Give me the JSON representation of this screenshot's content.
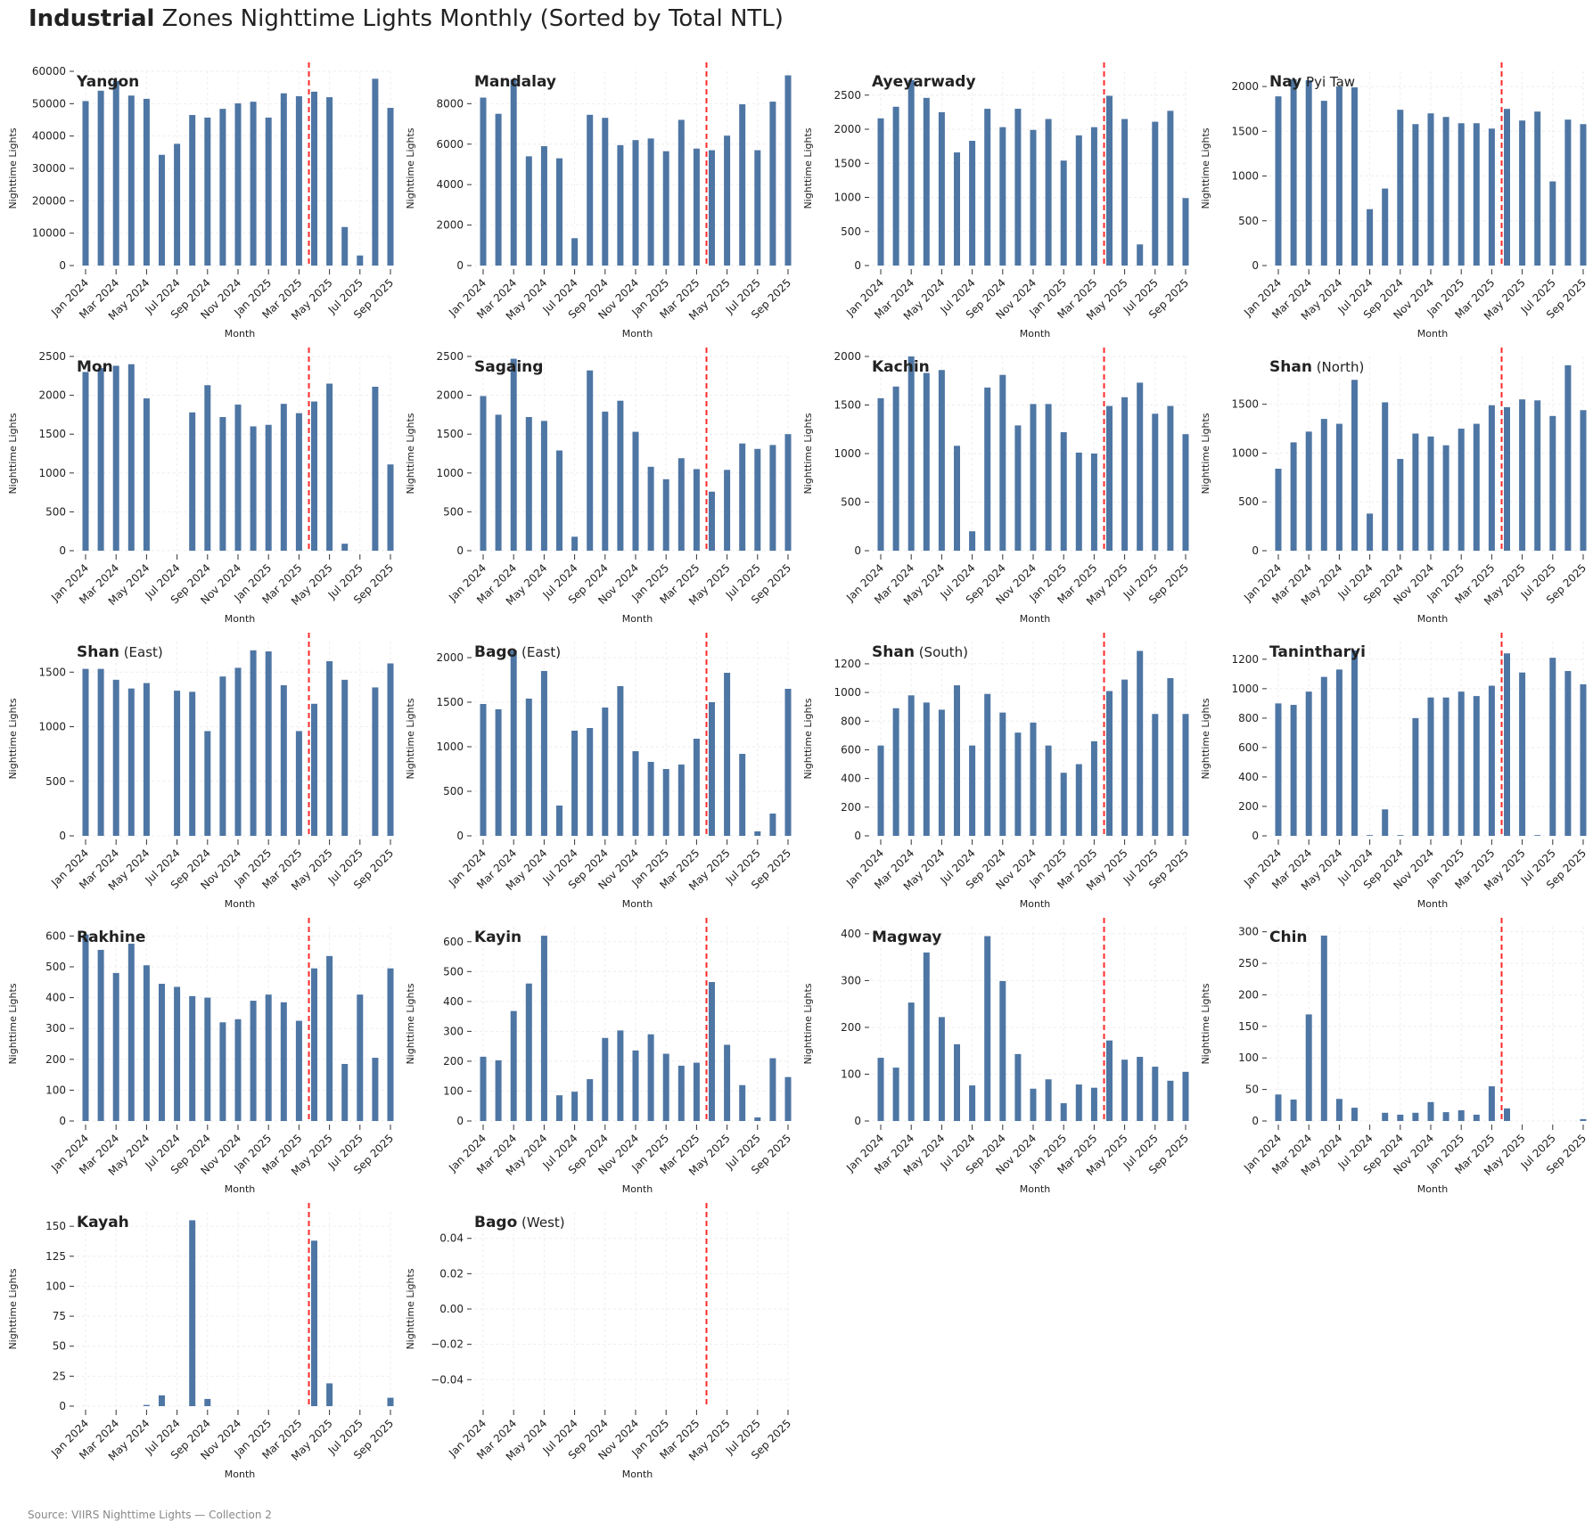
{
  "title": {
    "bold": "Industrial",
    "rest": " Zones Nighttime Lights Monthly (Sorted by Total NTL)"
  },
  "source": "Source: VIIRS Nighttime Lights — Collection 2",
  "colors": {
    "bar": "#4e76a4",
    "marker_line": "#ff2a2a",
    "grid": "#eeeeee"
  },
  "axis": {
    "ylabel": "Nighttime Lights",
    "xlabel": "Month"
  },
  "chart_data": [
    {
      "type": "bar",
      "title": "Yangon",
      "suffix": "",
      "ylim": [
        0,
        60000
      ],
      "yticks": [
        0,
        10000,
        20000,
        30000,
        40000,
        50000,
        60000
      ],
      "values": [
        50800,
        54000,
        57000,
        52500,
        51500,
        34200,
        37600,
        46500,
        45700,
        48400,
        50100,
        50600,
        45700,
        53200,
        52300,
        53700,
        52000,
        11900,
        3100,
        57700,
        48700
      ]
    },
    {
      "type": "bar",
      "title": "Mandalay",
      "suffix": "",
      "ylim": [
        0,
        9600
      ],
      "yticks": [
        0,
        2000,
        4000,
        6000,
        8000
      ],
      "values": [
        8300,
        7500,
        9200,
        5400,
        5900,
        5300,
        1350,
        7450,
        7300,
        5950,
        6200,
        6280,
        5650,
        7200,
        5780,
        5700,
        6420,
        7970,
        5700,
        8100,
        9400
      ]
    },
    {
      "type": "bar",
      "title": "Ayeyarwady",
      "suffix": "",
      "ylim": [
        0,
        2850
      ],
      "yticks": [
        0,
        500,
        1000,
        1500,
        2000,
        2500
      ],
      "values": [
        2160,
        2330,
        2720,
        2460,
        2250,
        1660,
        1830,
        2300,
        2030,
        2300,
        1990,
        2150,
        1540,
        1910,
        2030,
        2490,
        2150,
        310,
        2110,
        2270,
        990
      ]
    },
    {
      "type": "bar",
      "title": "Nay",
      "suffix": "Pyi Taw",
      "ylim": [
        0,
        2170
      ],
      "yticks": [
        0,
        500,
        1000,
        1500,
        2000
      ],
      "values": [
        1890,
        2080,
        2070,
        1840,
        2000,
        1990,
        630,
        860,
        1740,
        1580,
        1700,
        1660,
        1590,
        1590,
        1530,
        1750,
        1620,
        1720,
        940,
        1630,
        1580
      ]
    },
    {
      "type": "bar",
      "title": "Mon",
      "suffix": "",
      "ylim": [
        0,
        2500
      ],
      "yticks": [
        0,
        500,
        1000,
        1500,
        2000,
        2500
      ],
      "values": [
        2300,
        2350,
        2380,
        2400,
        1960,
        0,
        0,
        1780,
        2130,
        1720,
        1880,
        1600,
        1620,
        1890,
        1770,
        1920,
        2150,
        90,
        0,
        2110,
        1110
      ]
    },
    {
      "type": "bar",
      "title": "Sagaing",
      "suffix": "",
      "ylim": [
        0,
        2500
      ],
      "yticks": [
        0,
        500,
        1000,
        1500,
        2000,
        2500
      ],
      "values": [
        1990,
        1750,
        2470,
        1720,
        1670,
        1290,
        180,
        2320,
        1790,
        1930,
        1530,
        1080,
        920,
        1190,
        1050,
        760,
        1040,
        1380,
        1310,
        1360,
        1500
      ]
    },
    {
      "type": "bar",
      "title": "Kachin",
      "suffix": "",
      "ylim": [
        0,
        2000
      ],
      "yticks": [
        0,
        500,
        1000,
        1500,
        2000
      ],
      "values": [
        1570,
        1690,
        2000,
        1830,
        1860,
        1080,
        200,
        1680,
        1810,
        1290,
        1510,
        1510,
        1220,
        1010,
        1000,
        1490,
        1580,
        1730,
        1410,
        1490,
        1200
      ]
    },
    {
      "type": "bar",
      "title": "Shan",
      "suffix": "(North)",
      "ylim": [
        0,
        1990
      ],
      "yticks": [
        0,
        500,
        1000,
        1500
      ],
      "values": [
        840,
        1110,
        1220,
        1350,
        1300,
        1750,
        380,
        1520,
        940,
        1200,
        1170,
        1080,
        1250,
        1300,
        1490,
        1470,
        1550,
        1540,
        1380,
        1900,
        1440
      ]
    },
    {
      "type": "bar",
      "title": "Shan",
      "suffix": "(East)",
      "ylim": [
        0,
        1780
      ],
      "yticks": [
        0,
        500,
        1000,
        1500
      ],
      "values": [
        1530,
        1530,
        1430,
        1350,
        1400,
        0,
        1330,
        1320,
        960,
        1460,
        1540,
        1700,
        1690,
        1380,
        960,
        1210,
        1600,
        1430,
        0,
        1360,
        1580
      ]
    },
    {
      "type": "bar",
      "title": "Bago",
      "suffix": "(East)",
      "ylim": [
        0,
        2180
      ],
      "yticks": [
        0,
        500,
        1000,
        1500,
        2000
      ],
      "values": [
        1480,
        1420,
        2080,
        1540,
        1850,
        340,
        1180,
        1210,
        1440,
        1680,
        950,
        830,
        750,
        800,
        1090,
        1500,
        1830,
        920,
        50,
        250,
        1650
      ]
    },
    {
      "type": "bar",
      "title": "Shan",
      "suffix": "(South)",
      "ylim": [
        0,
        1355
      ],
      "yticks": [
        0,
        200,
        400,
        600,
        800,
        1000,
        1200
      ],
      "values": [
        630,
        890,
        980,
        930,
        880,
        1050,
        630,
        990,
        860,
        720,
        790,
        630,
        440,
        500,
        660,
        1010,
        1090,
        1290,
        850,
        1100,
        850
      ]
    },
    {
      "type": "bar",
      "title": "Tanintharyi",
      "suffix": "",
      "ylim": [
        0,
        1320
      ],
      "yticks": [
        0,
        200,
        400,
        600,
        800,
        1000,
        1200
      ],
      "values": [
        900,
        890,
        980,
        1080,
        1130,
        1260,
        5,
        180,
        5,
        800,
        940,
        940,
        980,
        950,
        1020,
        1240,
        1110,
        5,
        1210,
        1120,
        1030
      ]
    },
    {
      "type": "bar",
      "title": "Rakhine",
      "suffix": "",
      "ylim": [
        0,
        630
      ],
      "yticks": [
        0,
        100,
        200,
        300,
        400,
        500,
        600
      ],
      "values": [
        605,
        555,
        480,
        575,
        505,
        445,
        435,
        405,
        400,
        320,
        330,
        390,
        410,
        385,
        325,
        495,
        535,
        185,
        410,
        205,
        495
      ]
    },
    {
      "type": "bar",
      "title": "Kayin",
      "suffix": "",
      "ylim": [
        0,
        650
      ],
      "yticks": [
        0,
        100,
        200,
        300,
        400,
        500,
        600
      ],
      "values": [
        215,
        203,
        368,
        460,
        620,
        86,
        98,
        140,
        278,
        303,
        236,
        290,
        225,
        185,
        195,
        465,
        255,
        120,
        12,
        210,
        147
      ]
    },
    {
      "type": "bar",
      "title": "Magway",
      "suffix": "",
      "ylim": [
        0,
        415
      ],
      "yticks": [
        0,
        100,
        200,
        300,
        400
      ],
      "values": [
        135,
        114,
        253,
        360,
        222,
        164,
        76,
        395,
        299,
        143,
        69,
        89,
        38,
        78,
        71,
        172,
        131,
        137,
        116,
        86,
        105
      ]
    },
    {
      "type": "bar",
      "title": "Chin",
      "suffix": "",
      "ylim": [
        0,
        308
      ],
      "yticks": [
        0,
        50,
        100,
        150,
        200,
        250,
        300
      ],
      "values": [
        42,
        34,
        169,
        294,
        35,
        21,
        0,
        13,
        10,
        13,
        30,
        14,
        17,
        10,
        55,
        20,
        0,
        0,
        0,
        0,
        3
      ]
    },
    {
      "type": "bar",
      "title": "Kayah",
      "suffix": "",
      "ylim": [
        0,
        162
      ],
      "yticks": [
        0,
        25,
        50,
        75,
        100,
        125,
        150
      ],
      "values": [
        0,
        0,
        0,
        0,
        1,
        9,
        0,
        155,
        6,
        0,
        0,
        0,
        0,
        0,
        0,
        138,
        19,
        0,
        0,
        0,
        7
      ]
    },
    {
      "type": "bar",
      "title": "Bago",
      "suffix": "(West)",
      "ylim": [
        -0.055,
        0.055
      ],
      "yticks": [
        -0.04,
        -0.02,
        0.0,
        0.02,
        0.04
      ],
      "ytick_labels": [
        "−0.04",
        "−0.02",
        "0.00",
        "0.02",
        "0.04"
      ],
      "values": []
    }
  ],
  "months": [
    "Jan 2024",
    "Feb 2024",
    "Mar 2024",
    "Apr 2024",
    "May 2024",
    "Jun 2024",
    "Jul 2024",
    "Aug 2024",
    "Sep 2024",
    "Oct 2024",
    "Nov 2024",
    "Dec 2024",
    "Jan 2025",
    "Feb 2025",
    "Mar 2025",
    "Apr 2025",
    "May 2025",
    "Jun 2025",
    "Jul 2025",
    "Aug 2025",
    "Sep 2025"
  ],
  "xtick_labels": [
    "Jan 2024",
    "Mar 2024",
    "May 2024",
    "Jul 2024",
    "Sep 2024",
    "Nov 2024",
    "Jan 2025",
    "Mar 2025",
    "May 2025",
    "Jul 2025",
    "Sep 2025"
  ],
  "marker_month_index": 15
}
